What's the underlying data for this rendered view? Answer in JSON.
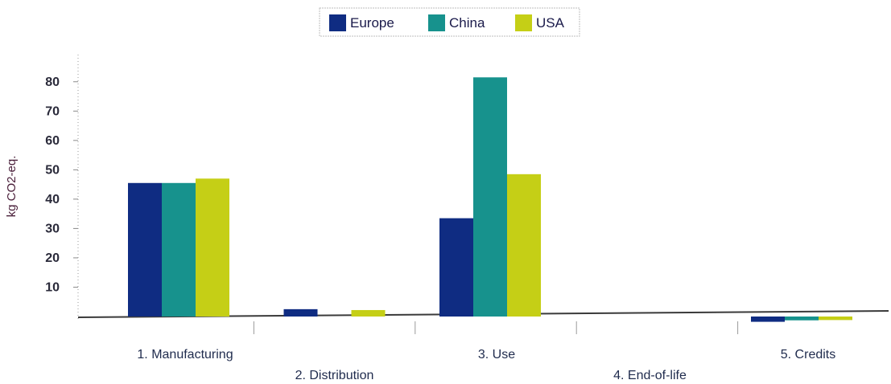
{
  "chart_data": {
    "type": "bar",
    "categories": [
      "1. Manufacturing",
      "2. Distribution",
      "3. Use",
      "4. End-of-life",
      "5. Credits"
    ],
    "series": [
      {
        "name": "Europe",
        "color": "#0f2c82",
        "values": [
          45.5,
          2.5,
          33.5,
          0,
          -1.8
        ]
      },
      {
        "name": "China",
        "color": "#17928d",
        "values": [
          45.5,
          0,
          81.5,
          0,
          -1.3
        ]
      },
      {
        "name": "USA",
        "color": "#c5cf16",
        "values": [
          47,
          2.2,
          48.5,
          0,
          -1.2
        ]
      }
    ],
    "ylabel": "kg CO2-eq.",
    "xlabel": "",
    "ylim": [
      -3,
      88
    ],
    "yticks": [
      10,
      20,
      30,
      40,
      50,
      60,
      70,
      80
    ],
    "grid": false,
    "legend_position": "top-center"
  }
}
